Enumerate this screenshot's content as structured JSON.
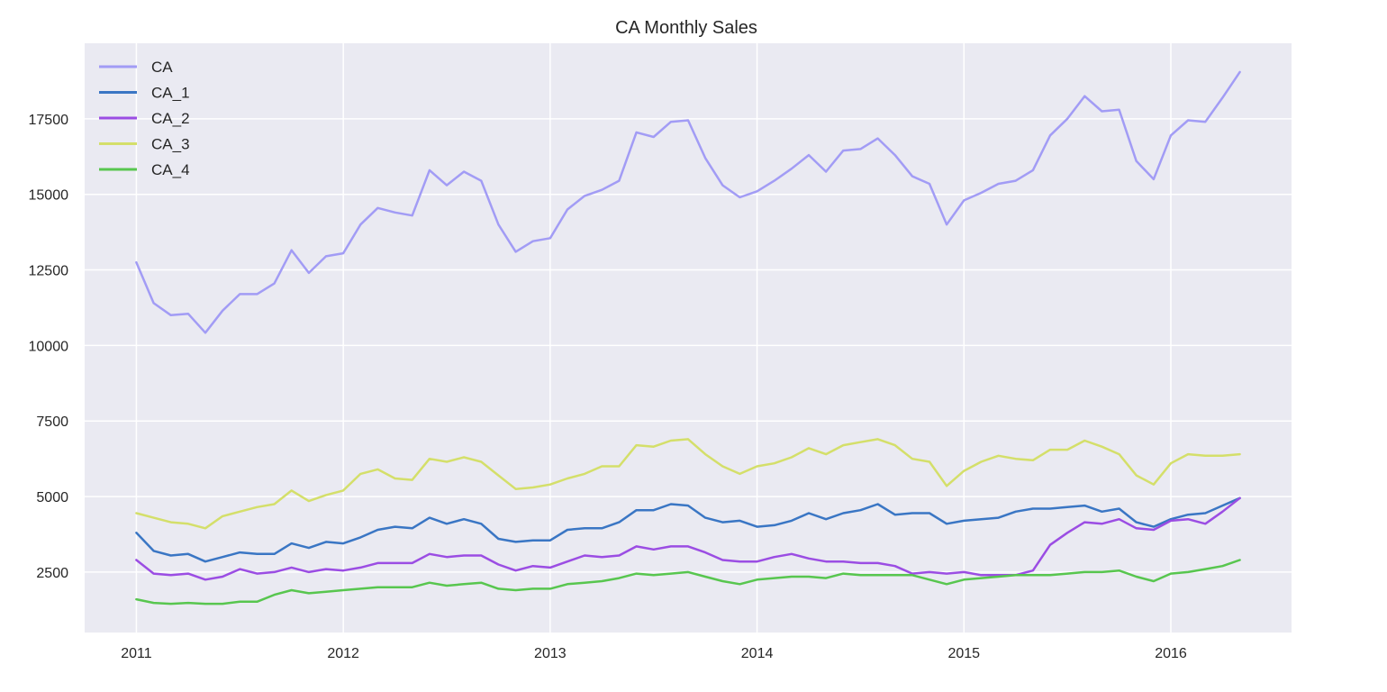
{
  "chart_data": {
    "type": "line",
    "title": "CA Monthly Sales",
    "xlabel": "",
    "ylabel": "",
    "x_ticks": [
      "2011",
      "2012",
      "2013",
      "2014",
      "2015",
      "2016"
    ],
    "y_ticks": [
      "2500",
      "5000",
      "7500",
      "10000",
      "12500",
      "15000",
      "17500"
    ],
    "x_range": [
      "2010-10",
      "2016-08"
    ],
    "ylim": [
      500,
      20000
    ],
    "x_start": "2011-01",
    "x_interval": "monthly",
    "grid": true,
    "legend_position": "top-left",
    "series": [
      {
        "name": "CA",
        "color": "#a29cf5",
        "values": [
          12750,
          11400,
          11000,
          11050,
          10420,
          11150,
          11700,
          11700,
          12050,
          13150,
          12400,
          12950,
          13050,
          14000,
          14550,
          14400,
          14300,
          15800,
          15300,
          15750,
          15450,
          14000,
          13100,
          13450,
          13550,
          14500,
          14950,
          15150,
          15450,
          17050,
          16900,
          17400,
          17450,
          16200,
          15300,
          14900,
          15100,
          15450,
          15850,
          16300,
          15750,
          16450,
          16500,
          16850,
          16300,
          15600,
          15350,
          14000,
          14800,
          15050,
          15350,
          15450,
          15800,
          16950,
          17500,
          18250,
          17750,
          17800,
          16100,
          15500,
          16950,
          17450,
          17400,
          18200,
          19050
        ]
      },
      {
        "name": "CA_1",
        "color": "#3a76c4",
        "values": [
          3800,
          3200,
          3050,
          3100,
          2850,
          3000,
          3150,
          3100,
          3100,
          3450,
          3300,
          3500,
          3450,
          3650,
          3900,
          4000,
          3950,
          4300,
          4100,
          4250,
          4100,
          3600,
          3500,
          3550,
          3550,
          3900,
          3950,
          3950,
          4150,
          4550,
          4550,
          4750,
          4700,
          4300,
          4150,
          4200,
          4000,
          4050,
          4200,
          4450,
          4250,
          4450,
          4550,
          4750,
          4400,
          4450,
          4450,
          4100,
          4200,
          4250,
          4300,
          4500,
          4600,
          4600,
          4650,
          4700,
          4500,
          4600,
          4150,
          4000,
          4250,
          4400,
          4450,
          4700,
          4950
        ]
      },
      {
        "name": "CA_2",
        "color": "#9b4de3",
        "values": [
          2900,
          2450,
          2400,
          2450,
          2250,
          2350,
          2600,
          2450,
          2500,
          2650,
          2500,
          2600,
          2550,
          2650,
          2800,
          2800,
          2800,
          3100,
          3000,
          3050,
          3050,
          2750,
          2550,
          2700,
          2650,
          2850,
          3050,
          3000,
          3050,
          3350,
          3250,
          3350,
          3350,
          3150,
          2900,
          2850,
          2850,
          3000,
          3100,
          2950,
          2850,
          2850,
          2800,
          2800,
          2700,
          2450,
          2500,
          2450,
          2500,
          2400,
          2400,
          2400,
          2550,
          3400,
          3800,
          4150,
          4100,
          4250,
          3950,
          3900,
          4200,
          4250,
          4100,
          4500,
          4950
        ]
      },
      {
        "name": "CA_3",
        "color": "#d4df6a",
        "values": [
          4450,
          4300,
          4150,
          4100,
          3950,
          4350,
          4500,
          4650,
          4750,
          5200,
          4850,
          5050,
          5200,
          5750,
          5900,
          5600,
          5550,
          6250,
          6150,
          6300,
          6150,
          5700,
          5250,
          5300,
          5400,
          5600,
          5750,
          6000,
          6000,
          6700,
          6650,
          6850,
          6900,
          6400,
          6000,
          5750,
          6000,
          6100,
          6300,
          6600,
          6400,
          6700,
          6800,
          6900,
          6700,
          6250,
          6150,
          5350,
          5850,
          6150,
          6350,
          6250,
          6200,
          6550,
          6550,
          6850,
          6650,
          6400,
          5700,
          5400,
          6100,
          6400,
          6350,
          6350,
          6400
        ]
      },
      {
        "name": "CA_4",
        "color": "#58c64f",
        "values": [
          1600,
          1480,
          1450,
          1480,
          1450,
          1450,
          1520,
          1520,
          1750,
          1900,
          1800,
          1850,
          1900,
          1950,
          2000,
          2000,
          2000,
          2150,
          2050,
          2100,
          2150,
          1950,
          1900,
          1950,
          1950,
          2100,
          2150,
          2200,
          2300,
          2450,
          2400,
          2450,
          2500,
          2350,
          2200,
          2100,
          2250,
          2300,
          2350,
          2350,
          2300,
          2450,
          2400,
          2400,
          2400,
          2400,
          2250,
          2100,
          2250,
          2300,
          2350,
          2400,
          2400,
          2400,
          2450,
          2500,
          2500,
          2550,
          2350,
          2200,
          2450,
          2500,
          2600,
          2700,
          2900
        ]
      }
    ]
  }
}
